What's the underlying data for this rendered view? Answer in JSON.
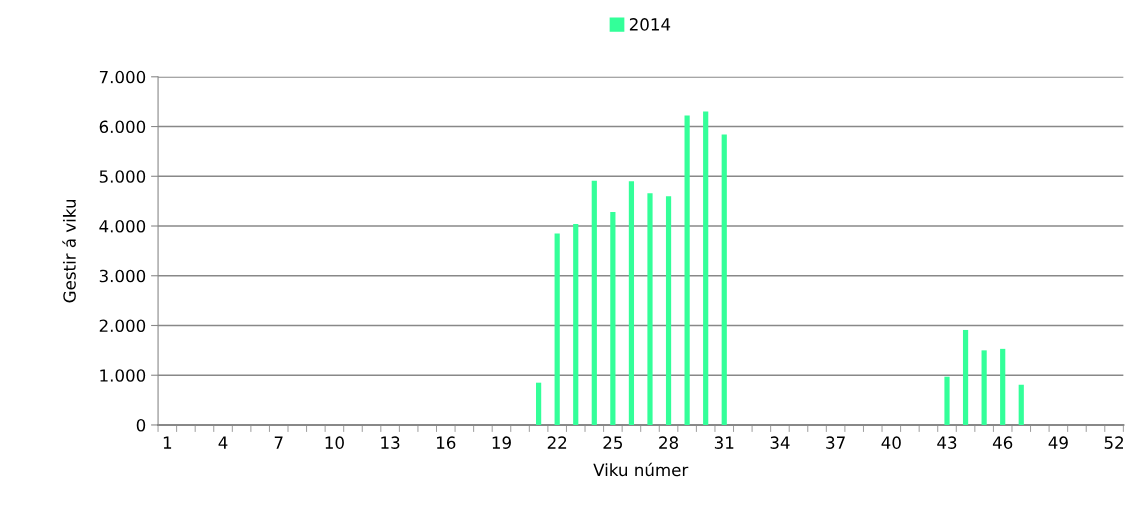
{
  "chart_data": {
    "type": "bar",
    "xlabel": "Viku númer",
    "ylabel": "Gestir á viku",
    "categories": [
      "1",
      null,
      null,
      "4",
      null,
      null,
      "7",
      null,
      null,
      "10",
      null,
      null,
      "13",
      null,
      null,
      "16",
      null,
      null,
      "19",
      null,
      null,
      "22",
      null,
      null,
      "25",
      null,
      null,
      "28",
      null,
      null,
      "31",
      null,
      null,
      "34",
      null,
      null,
      "37",
      null,
      null,
      "40",
      null,
      null,
      "43",
      null,
      null,
      "46",
      null,
      null,
      "49",
      null,
      null,
      "52"
    ],
    "series": [
      {
        "name": "2014",
        "color": "#33ff99",
        "values": [
          0,
          0,
          0,
          0,
          0,
          0,
          0,
          0,
          0,
          0,
          0,
          0,
          0,
          0,
          0,
          0,
          0,
          0,
          0,
          0,
          850,
          3850,
          4040,
          4910,
          4280,
          4900,
          4660,
          4600,
          6220,
          6300,
          5840,
          0,
          0,
          0,
          0,
          0,
          0,
          0,
          0,
          0,
          0,
          0,
          970,
          1910,
          1500,
          1530,
          810,
          0,
          0,
          0,
          0,
          0
        ]
      }
    ],
    "ylim": [
      0,
      7000
    ],
    "yticks": [
      0,
      {
        "value": 1000,
        "label": "1.000"
      },
      {
        "value": 2000,
        "label": "2.000"
      },
      {
        "value": 3000,
        "label": "3.000"
      },
      {
        "value": 4000,
        "label": "4.000"
      },
      {
        "value": 5000,
        "label": "5.000"
      },
      {
        "value": 6000,
        "label": "6.000"
      },
      {
        "value": 7000,
        "label": "7.000"
      }
    ],
    "grid": "y",
    "legend": "top"
  }
}
